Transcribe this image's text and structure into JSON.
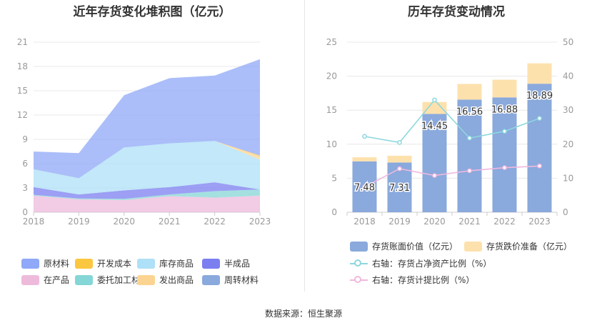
{
  "footer": {
    "source": "数据来源：恒生聚源"
  },
  "colors": {
    "raw": "#8fa8f7",
    "dev_cost": "#fcc740",
    "finished": "#aee0f7",
    "semi": "#7b7ff0",
    "wip": "#eebadc",
    "processing": "#85d6d6",
    "shipped": "#fcd491",
    "turnover": "#8aa9dc",
    "bar_book": "#8aa9dc",
    "bar_reserve": "#fde1ad",
    "line_ratio": "#8dd7de",
    "line_provision": "#f0b8df"
  },
  "chart_data": [
    {
      "type": "area",
      "title": "近年存货变化堆积图（亿元）",
      "x": [
        "2018",
        "2019",
        "2020",
        "2021",
        "2022",
        "2023"
      ],
      "ylim": [
        0,
        21
      ],
      "yticks": [
        "0",
        "3",
        "6",
        "9",
        "12",
        "15",
        "18",
        "21"
      ],
      "stacked": true,
      "series": [
        {
          "name": "在产品",
          "color_key": "wip",
          "values": [
            2.05,
            1.6,
            1.5,
            2.0,
            1.8,
            2.05
          ]
        },
        {
          "name": "委托加工材料",
          "color_key": "processing",
          "values": [
            0.1,
            0.1,
            0.15,
            0.2,
            0.8,
            0.75
          ]
        },
        {
          "name": "半成品",
          "color_key": "semi",
          "values": [
            0.95,
            0.5,
            1.05,
            0.9,
            1.1,
            0.0
          ]
        },
        {
          "name": "库存商品",
          "color_key": "finished",
          "values": [
            2.2,
            2.0,
            5.3,
            5.4,
            5.1,
            3.7
          ]
        },
        {
          "name": "发出商品",
          "color_key": "shipped",
          "values": [
            0.0,
            0.0,
            0.0,
            0.0,
            0.0,
            0.4
          ]
        },
        {
          "name": "开发成本",
          "color_key": "dev_cost",
          "values": [
            0.0,
            0.0,
            0.0,
            0.0,
            0.0,
            0.1
          ]
        },
        {
          "name": "原材料",
          "color_key": "raw",
          "values": [
            2.2,
            3.1,
            6.45,
            8.06,
            8.08,
            11.89
          ]
        },
        {
          "name": "周转材料",
          "color_key": "turnover",
          "values": [
            0.0,
            0.0,
            0.0,
            0.0,
            0.0,
            0.0
          ]
        }
      ],
      "legend": [
        {
          "name": "原材料",
          "color_key": "raw"
        },
        {
          "name": "开发成本",
          "color_key": "dev_cost"
        },
        {
          "name": "库存商品",
          "color_key": "finished"
        },
        {
          "name": "半成品",
          "color_key": "semi"
        },
        {
          "name": "在产品",
          "color_key": "wip"
        },
        {
          "name": "委托加工材料",
          "color_key": "processing"
        },
        {
          "name": "发出商品",
          "color_key": "shipped"
        },
        {
          "name": "周转材料",
          "color_key": "turnover"
        }
      ],
      "legend_position": "bottom",
      "grid": true
    },
    {
      "type": "bar",
      "title": "历年存货变动情况",
      "categories": [
        "2018",
        "2019",
        "2020",
        "2021",
        "2022",
        "2023"
      ],
      "ylim": [
        0,
        25
      ],
      "yticks": [
        "0",
        "5",
        "10",
        "15",
        "20",
        "25"
      ],
      "y2lim": [
        0,
        50
      ],
      "y2ticks": [
        "0",
        "10",
        "20",
        "30",
        "40",
        "50"
      ],
      "stacked": true,
      "series": [
        {
          "name": "存货账面价值（亿元）",
          "type": "bar",
          "color_key": "bar_book",
          "values": [
            7.48,
            7.31,
            14.45,
            16.56,
            16.88,
            18.89
          ],
          "labels": [
            "7.48",
            "7.31",
            "14.45",
            "16.56",
            "16.88",
            "18.89"
          ]
        },
        {
          "name": "存货跌价准备（亿元）",
          "type": "bar",
          "color_key": "bar_reserve",
          "values": [
            0.6,
            1.0,
            1.75,
            2.3,
            2.6,
            3.0
          ]
        },
        {
          "name": "右轴：存货占净资产比例（%）",
          "type": "line",
          "axis": "right",
          "color_key": "line_ratio",
          "values": [
            22.3,
            20.5,
            33.0,
            21.8,
            23.8,
            27.6
          ]
        },
        {
          "name": "右轴：存货计提比例（%）",
          "type": "line",
          "axis": "right",
          "color_key": "line_provision",
          "values": [
            7.4,
            12.8,
            10.8,
            12.2,
            13.1,
            13.6
          ]
        }
      ],
      "legend_position": "bottom",
      "grid": true
    }
  ]
}
